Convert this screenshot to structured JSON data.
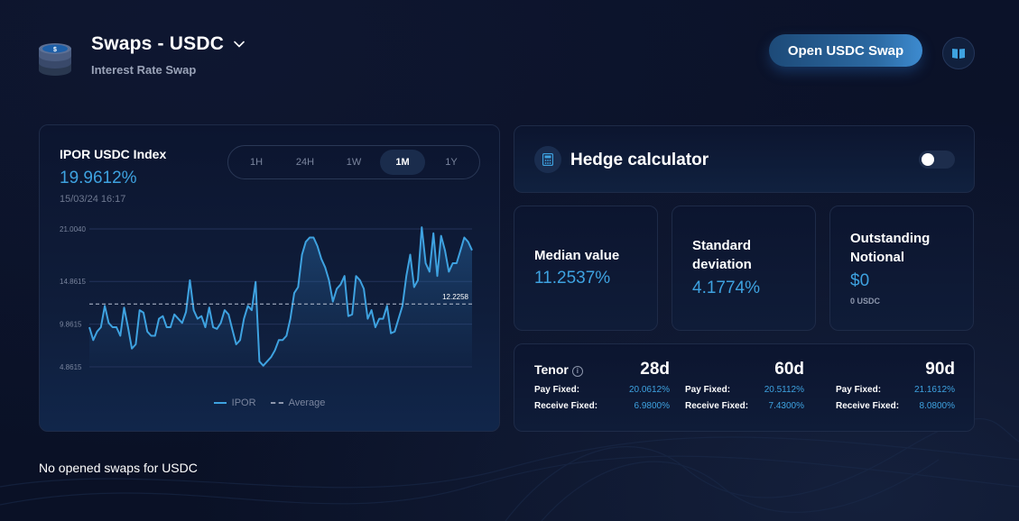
{
  "header": {
    "title": "Swaps - USDC",
    "subtitle": "Interest Rate Swap",
    "open_button": "Open USDC Swap",
    "logo_icon": "usdc-coin-stack-icon",
    "book_icon": "book-icon"
  },
  "chart_card": {
    "title": "IPOR USDC Index",
    "value": "19.9612%",
    "date": "15/03/24 16:17",
    "periods": [
      "1H",
      "24H",
      "1W",
      "1M",
      "1Y"
    ],
    "active_period": "1M",
    "legend_ipor": "IPOR",
    "legend_average": "Average"
  },
  "chart_data": {
    "type": "line",
    "y_ticks": [
      "21.0040",
      "14.8615",
      "9.8615",
      "4.8615"
    ],
    "y_tick_values": [
      21.004,
      14.8615,
      9.8615,
      4.8615
    ],
    "ylim": [
      4.8615,
      21.004
    ],
    "average_label": "12.2258",
    "average_value": 12.2258,
    "series": [
      {
        "name": "IPOR",
        "values": [
          9.5,
          8,
          9,
          9.5,
          12,
          10,
          9.5,
          9.5,
          8.5,
          11.8,
          9.5,
          7,
          7.5,
          11.5,
          11.2,
          9,
          8.5,
          8.5,
          10.5,
          10.8,
          9.5,
          9.5,
          11,
          10.5,
          10,
          11.3,
          15,
          11.5,
          10.5,
          10.8,
          9.5,
          11.8,
          9.5,
          9.3,
          10,
          11.5,
          11,
          9.2,
          7.5,
          8,
          10.5,
          12,
          11.5,
          14.8,
          5.5,
          5,
          5.5,
          6,
          6.8,
          8,
          8,
          8.5,
          10.5,
          13.5,
          14.2,
          18,
          19.5,
          20,
          20,
          19,
          17.5,
          16.5,
          15,
          12.5,
          14,
          14.5,
          15.5,
          10.8,
          11,
          15.5,
          15,
          14,
          10.5,
          11.5,
          9.5,
          10.5,
          10.5,
          12,
          8.8,
          9,
          10.5,
          12,
          15.5,
          18,
          14.2,
          15,
          21.2,
          17,
          16,
          20.5,
          15.5,
          20.2,
          18.5,
          16,
          17,
          17,
          18.5,
          20,
          19.5,
          18.5
        ]
      }
    ]
  },
  "hedge": {
    "title": "Hedge calculator",
    "icon": "calculator-icon",
    "toggle_on": false
  },
  "stats": {
    "median_label": "Median value",
    "median_value": "11.2537%",
    "std_label_1": "Standard",
    "std_label_2": "deviation",
    "std_value": "4.1774%",
    "outstanding_label_1": "Outstanding",
    "outstanding_label_2": "Notional",
    "outstanding_value": "$0",
    "outstanding_sub": "0 USDC"
  },
  "tenor": {
    "label": "Tenor",
    "pay_label": "Pay Fixed:",
    "receive_label": "Receive Fixed:",
    "columns": [
      {
        "days": "28d",
        "pay": "20.0612%",
        "receive": "6.9800%"
      },
      {
        "days": "60d",
        "pay": "20.5112%",
        "receive": "7.4300%"
      },
      {
        "days": "90d",
        "pay": "21.1612%",
        "receive": "8.0800%"
      }
    ]
  },
  "footer": {
    "no_swaps": "No opened swaps for USDC"
  },
  "colors": {
    "accent": "#3ea2e0",
    "background": "#0a1128",
    "card_border": "#1e2b48"
  }
}
